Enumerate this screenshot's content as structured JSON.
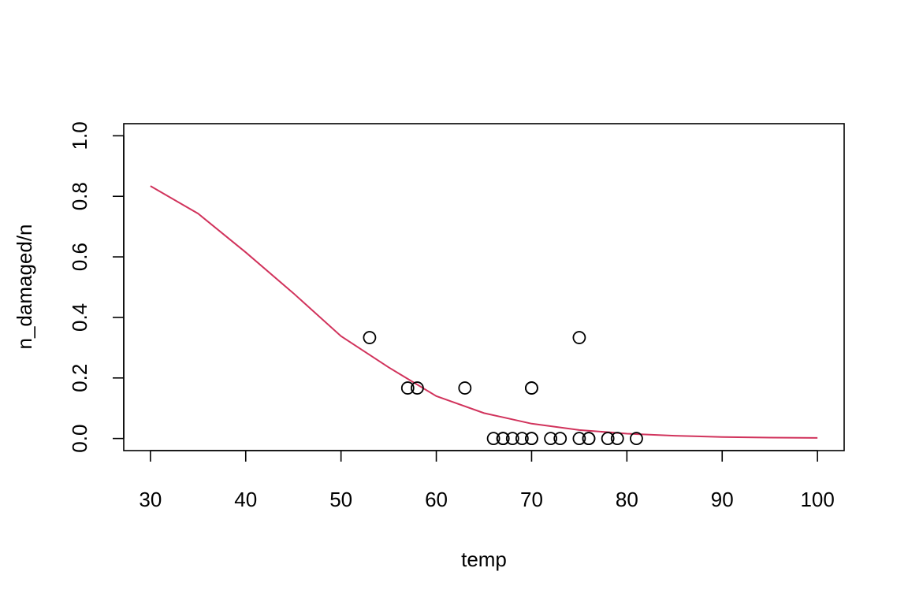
{
  "chart_data": {
    "type": "scatter",
    "xlabel": "temp",
    "ylabel": "n_damaged/n",
    "xlim": [
      27.2,
      102.8
    ],
    "ylim": [
      -0.04,
      1.04
    ],
    "xticks": [
      30,
      40,
      50,
      60,
      70,
      80,
      90,
      100
    ],
    "yticks": [
      0.0,
      0.2,
      0.4,
      0.6,
      0.8,
      1.0
    ],
    "xtick_labels": [
      "30",
      "40",
      "50",
      "60",
      "70",
      "80",
      "90",
      "100"
    ],
    "ytick_labels": [
      "0.0",
      "0.2",
      "0.4",
      "0.6",
      "0.8",
      "1.0"
    ],
    "grid": false,
    "points": {
      "x": [
        53,
        57,
        58,
        63,
        66,
        67,
        67,
        67,
        68,
        69,
        70,
        70,
        70,
        70,
        72,
        73,
        75,
        75,
        76,
        76,
        78,
        79,
        81
      ],
      "y": [
        0.3333,
        0.1667,
        0.1667,
        0.1667,
        0,
        0,
        0,
        0,
        0,
        0,
        0,
        0,
        0.1667,
        0.1667,
        0,
        0,
        0,
        0.3333,
        0,
        0,
        0,
        0,
        0
      ],
      "marker": "open-circle",
      "color": "#000000"
    },
    "curve": {
      "x": [
        30,
        35,
        40,
        45,
        50,
        55,
        60,
        65,
        70,
        75,
        80,
        85,
        90,
        95,
        100
      ],
      "y": [
        0.834,
        0.743,
        0.615,
        0.48,
        0.338,
        0.235,
        0.14,
        0.084,
        0.049,
        0.028,
        0.016,
        0.009,
        0.005,
        0.003,
        0.002
      ],
      "color": "#D1335C"
    }
  }
}
